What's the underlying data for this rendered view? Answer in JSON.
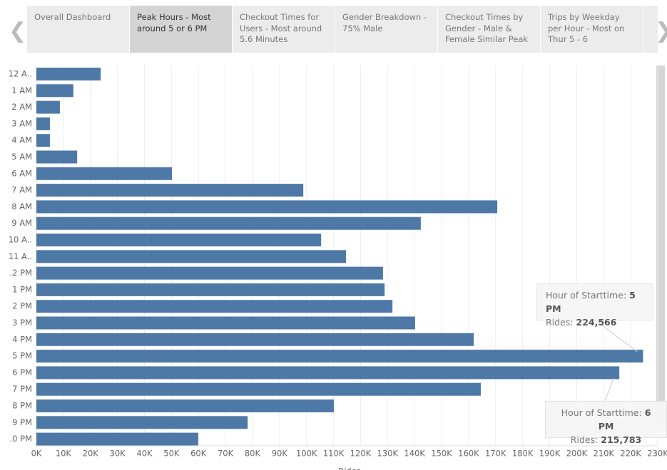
{
  "tabs": [
    "Overall Dashboard",
    "Peak Hours - Most around 5 or 6 PM",
    "Checkout Times for Users - Most around 5.6 Minutes",
    "Gender Breakdown - 75% Male",
    "Checkout Times by Gender - Male & Female Similar Peak",
    "Trips by Weekday per Hour - Most on Thur 5 - 6"
  ],
  "chart_data": {
    "type": "hbar",
    "color": "#4e79a7",
    "grid": true,
    "categories": [
      "12 A..",
      "1 AM",
      "2 AM",
      "3 AM",
      "4 AM",
      "5 AM",
      "6 AM",
      "7 AM",
      "8 AM",
      "9 AM",
      "10 A..",
      "11 A..",
      ".2 PM",
      "1 PM",
      "2 PM",
      "3 PM",
      "4 PM",
      "5 PM",
      "6 PM",
      "7 PM",
      "8 PM",
      "9 PM",
      ".0 PM"
    ],
    "values": [
      23800,
      13700,
      8700,
      5000,
      5000,
      15100,
      50200,
      98800,
      170600,
      142300,
      105400,
      114600,
      128300,
      128900,
      131800,
      140200,
      161900,
      224566,
      215783,
      164500,
      110100,
      78200,
      59900
    ],
    "value_labels": [
      null,
      null,
      null,
      null,
      null,
      null,
      null,
      null,
      null,
      null,
      null,
      null,
      null,
      null,
      null,
      null,
      null,
      "224,566",
      "215,783",
      null,
      null,
      null,
      null
    ],
    "tooltip_texts": {
      "hour": "Hour of Starttime:",
      "rides": "Rides:"
    },
    "xlabel": "Rides",
    "xlim": [
      0,
      230000
    ],
    "xticks": [
      {
        "value": 0,
        "label": "0K"
      },
      {
        "value": 10000,
        "label": "10K"
      },
      {
        "value": 20000,
        "label": "20K"
      },
      {
        "value": 30000,
        "label": "30K"
      },
      {
        "value": 40000,
        "label": "40K"
      },
      {
        "value": 50000,
        "label": "50K"
      },
      {
        "value": 60000,
        "label": "60K"
      },
      {
        "value": 70000,
        "label": "70K"
      },
      {
        "value": 80000,
        "label": "80K"
      },
      {
        "value": 90000,
        "label": "90K"
      },
      {
        "value": 100000,
        "label": "100K"
      },
      {
        "value": 110000,
        "label": "110K"
      },
      {
        "value": 120000,
        "label": "120K"
      },
      {
        "value": 130000,
        "label": "130K"
      },
      {
        "value": 140000,
        "label": "140K"
      },
      {
        "value": 150000,
        "label": "150K"
      },
      {
        "value": 160000,
        "label": "160K"
      },
      {
        "value": 170000,
        "label": "170K"
      },
      {
        "value": 180000,
        "label": "180K"
      },
      {
        "value": 190000,
        "label": "190K"
      },
      {
        "value": 200000,
        "label": "200K"
      },
      {
        "value": 210000,
        "label": "210K"
      },
      {
        "value": 220000,
        "label": "220K"
      },
      {
        "value": 230000,
        "label": "230K"
      }
    ]
  }
}
